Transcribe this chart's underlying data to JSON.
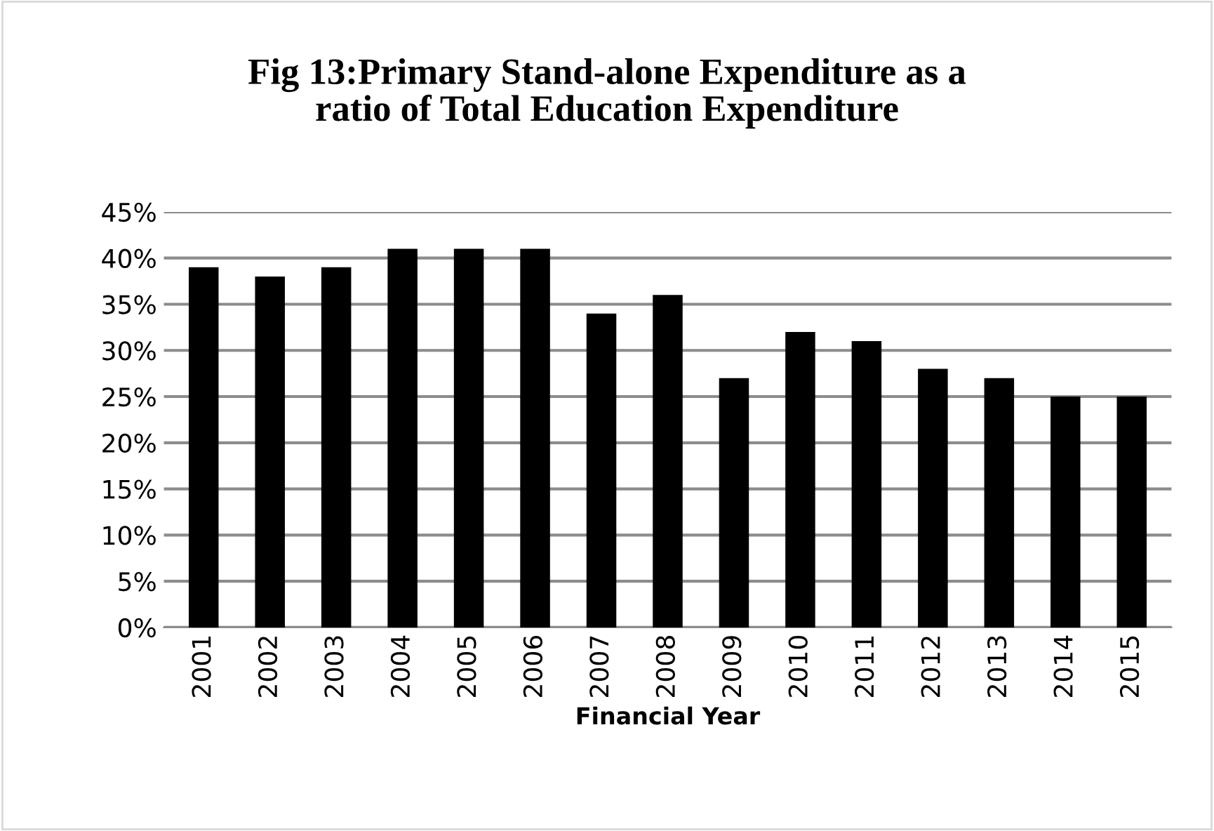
{
  "chart_data": {
    "type": "bar",
    "title": "Fig 13:Primary Stand-alone Expenditure as a\nratio of Total Education Expenditure",
    "xlabel": "Financial Year",
    "categories": [
      "2001",
      "2002",
      "2003",
      "2004",
      "2005",
      "2006",
      "2007",
      "2008",
      "2009",
      "2010",
      "2011",
      "2012",
      "2013",
      "2014",
      "2015"
    ],
    "values": [
      39,
      38,
      39,
      41,
      41,
      41,
      34,
      36,
      27,
      32,
      31,
      28,
      27,
      25,
      25
    ],
    "color": "#000000",
    "ylim": [
      0,
      45
    ],
    "yticks": [
      {
        "value": 0,
        "label": "0%"
      },
      {
        "value": 5,
        "label": "5%"
      },
      {
        "value": 10,
        "label": "10%"
      },
      {
        "value": 15,
        "label": "15%"
      },
      {
        "value": 20,
        "label": "20%"
      },
      {
        "value": 25,
        "label": "25%"
      },
      {
        "value": 30,
        "label": "30%"
      },
      {
        "value": 35,
        "label": "35%"
      },
      {
        "value": 40,
        "label": "40%"
      },
      {
        "value": 45,
        "label": "45%"
      }
    ],
    "grid": "y"
  }
}
